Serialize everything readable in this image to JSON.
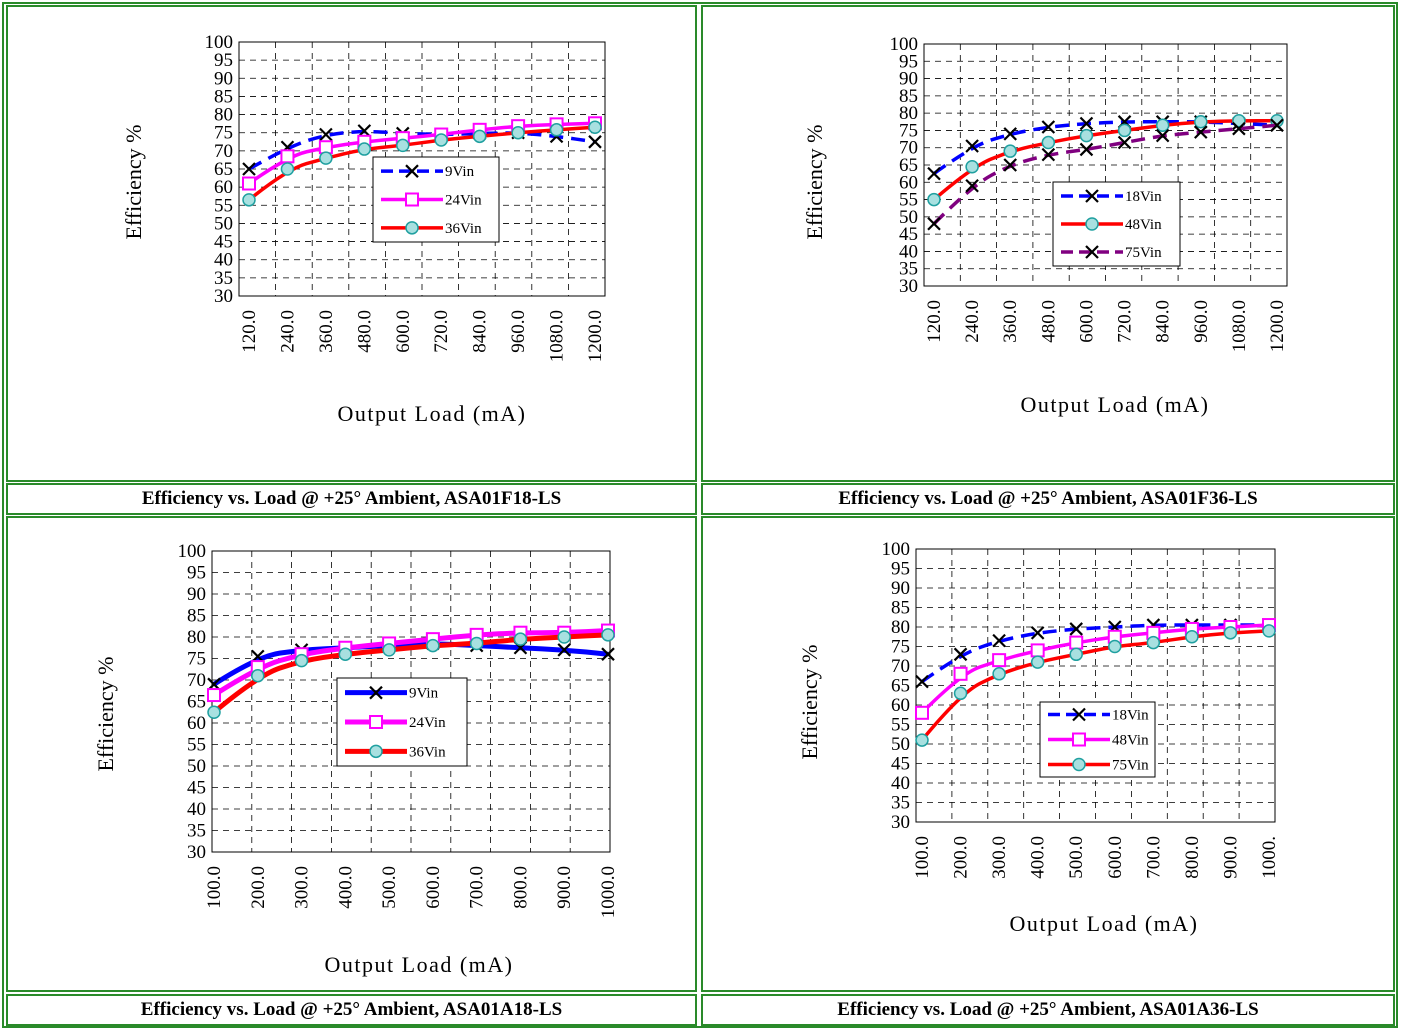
{
  "charts": [
    {
      "caption": "Efficiency vs. Load @ +25° Ambient, ASA01F18-LS"
    },
    {
      "caption": "Efficiency vs. Load @ +25° Ambient, ASA01F36-LS"
    },
    {
      "caption": "Efficiency vs. Load @ +25° Ambient, ASA01A18-LS"
    },
    {
      "caption": "Efficiency vs. Load @ +25° Ambient, ASA01A36-LS"
    }
  ],
  "chart_data": [
    {
      "type": "line",
      "title": "Efficiency vs. Load @ +25° Ambient, ASA01F18-LS",
      "xlabel": "Output Load (mA)",
      "ylabel": "Efficiency %",
      "ylim": [
        30,
        100
      ],
      "yticks": [
        30,
        35,
        40,
        45,
        50,
        55,
        60,
        65,
        70,
        75,
        80,
        85,
        90,
        95,
        100
      ],
      "categories": [
        "120.0",
        "240.0",
        "360.0",
        "480.0",
        "600.0",
        "720.0",
        "840.0",
        "960.0",
        "1080.0",
        "1200.0"
      ],
      "grid": true,
      "legend_position": "center",
      "series": [
        {
          "name": "9Vin",
          "color": "#0000ff",
          "dash": true,
          "marker": "x",
          "values": [
            65,
            71,
            74.5,
            75.5,
            74.8,
            74.5,
            74.8,
            75,
            74,
            72.5
          ]
        },
        {
          "name": "24Vin",
          "color": "#ff00ff",
          "dash": false,
          "marker": "square",
          "values": [
            61,
            68.5,
            71,
            72.5,
            73.5,
            74.5,
            75.8,
            76.8,
            77.3,
            77.6
          ]
        },
        {
          "name": "36Vin",
          "color": "#ff0000",
          "dash": false,
          "marker": "circle",
          "values": [
            56.5,
            65,
            68,
            70.5,
            71.5,
            73,
            74,
            75,
            75.8,
            76.5
          ]
        }
      ]
    },
    {
      "type": "line",
      "title": "Efficiency vs. Load @ +25° Ambient, ASA01F36-LS",
      "xlabel": "Output Load (mA)",
      "ylabel": "Efficiency %",
      "ylim": [
        30,
        100
      ],
      "yticks": [
        30,
        35,
        40,
        45,
        50,
        55,
        60,
        65,
        70,
        75,
        80,
        85,
        90,
        95,
        100
      ],
      "categories": [
        "120.0",
        "240.0",
        "360.0",
        "480.0",
        "600.0",
        "720.0",
        "840.0",
        "960.0",
        "1080.0",
        "1200.0"
      ],
      "grid": true,
      "legend_position": "center",
      "series": [
        {
          "name": "18Vin",
          "color": "#0000ff",
          "dash": true,
          "marker": "x",
          "values": [
            62.5,
            70.5,
            74,
            76,
            77,
            77.5,
            77.5,
            77.5,
            77,
            76.5
          ]
        },
        {
          "name": "48Vin",
          "color": "#ff0000",
          "dash": false,
          "marker": "circle",
          "values": [
            55,
            64.5,
            69,
            71.5,
            73.5,
            75,
            76.5,
            77.5,
            77.8,
            77.8
          ]
        },
        {
          "name": "75Vin",
          "color": "#800080",
          "dash": true,
          "marker": "x",
          "values": [
            48,
            59,
            65,
            68,
            69.5,
            71.5,
            73.5,
            74.5,
            75.5,
            76.5
          ]
        }
      ]
    },
    {
      "type": "line",
      "title": "Efficiency vs. Load @ +25° Ambient, ASA01A18-LS",
      "xlabel": "Output Load (mA)",
      "ylabel": "Efficiency %",
      "ylim": [
        30,
        100
      ],
      "yticks": [
        30,
        35,
        40,
        45,
        50,
        55,
        60,
        65,
        70,
        75,
        80,
        85,
        90,
        95,
        100
      ],
      "categories": [
        "100.0",
        "200.0",
        "300.0",
        "400.0",
        "500.0",
        "600.0",
        "700.0",
        "800.0",
        "900.0",
        "1000.0"
      ],
      "grid": true,
      "legend_position": "center",
      "series": [
        {
          "name": "9Vin",
          "color": "#0000ff",
          "dash": false,
          "marker": "x",
          "values": [
            69,
            75.5,
            77,
            77.5,
            78,
            78.5,
            78,
            77.5,
            77,
            76
          ]
        },
        {
          "name": "24Vin",
          "color": "#ff00ff",
          "dash": false,
          "marker": "square",
          "values": [
            66.5,
            73,
            76,
            77.5,
            78.5,
            79.5,
            80.5,
            81,
            81,
            81.5
          ]
        },
        {
          "name": "36Vin",
          "color": "#ff0000",
          "dash": false,
          "marker": "circle",
          "values": [
            62.5,
            71,
            74.5,
            76,
            77,
            78,
            78.5,
            79.5,
            80,
            80.5
          ]
        }
      ]
    },
    {
      "type": "line",
      "title": "Efficiency vs. Load @ +25° Ambient, ASA01A36-LS",
      "xlabel": "Output Load (mA)",
      "ylabel": "Efficiency %",
      "ylim": [
        30,
        100
      ],
      "yticks": [
        30,
        35,
        40,
        45,
        50,
        55,
        60,
        65,
        70,
        75,
        80,
        85,
        90,
        95,
        100
      ],
      "categories": [
        "100.0",
        "200.0",
        "300.0",
        "400.0",
        "500.0",
        "600.0",
        "700.0",
        "800.0",
        "900.0",
        "1000."
      ],
      "grid": true,
      "legend_position": "center",
      "series": [
        {
          "name": "18Vin",
          "color": "#0000ff",
          "dash": true,
          "marker": "x",
          "values": [
            66,
            73,
            76.5,
            78.5,
            79.5,
            80,
            80.5,
            80.5,
            80.5,
            80.5
          ]
        },
        {
          "name": "48Vin",
          "color": "#ff00ff",
          "dash": false,
          "marker": "square",
          "values": [
            58,
            68,
            71.5,
            74,
            76,
            77.5,
            78.5,
            79.5,
            80,
            80.5
          ]
        },
        {
          "name": "75Vin",
          "color": "#ff0000",
          "dash": false,
          "marker": "circle",
          "values": [
            51,
            63,
            68,
            71,
            73,
            75,
            76,
            77.5,
            78.5,
            79
          ]
        }
      ]
    }
  ]
}
